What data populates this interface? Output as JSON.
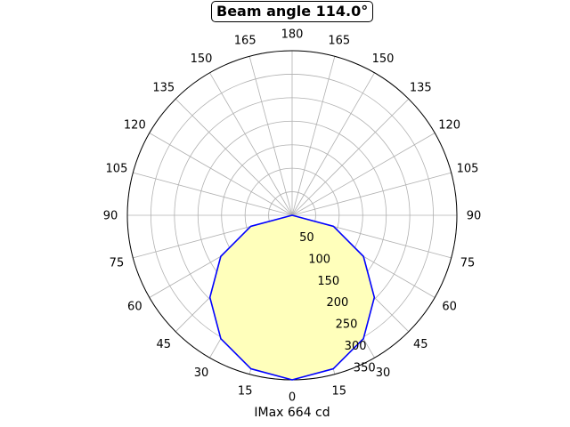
{
  "chart_data": {
    "type": "polar",
    "title": "Beam angle 114.0°",
    "xlabel": "IMax 664 cd",
    "angle_tick_labels": [
      "180",
      "165",
      "150",
      "135",
      "120",
      "105",
      "90",
      "75",
      "60",
      "45",
      "30",
      "15",
      "0",
      "15",
      "30",
      "45",
      "60",
      "75",
      "90",
      "105",
      "120",
      "135",
      "150",
      "165"
    ],
    "radial_tick_labels": [
      "50",
      "100",
      "150",
      "200",
      "250",
      "300",
      "350"
    ],
    "radial_ticks": [
      50,
      100,
      150,
      200,
      250,
      300,
      350
    ],
    "rmax": 350,
    "grid": true,
    "series": [
      {
        "color": "#0000ff",
        "fill": "#ffffbb",
        "angles_deg": [
          -180,
          -165,
          -150,
          -135,
          -120,
          -105,
          -90,
          -75,
          -60,
          -45,
          -30,
          -15,
          0,
          15,
          30,
          45,
          60,
          75,
          90,
          105,
          120,
          135,
          150,
          165,
          180
        ],
        "values": [
          0,
          0,
          0,
          0,
          0,
          0,
          0,
          91,
          175,
          247,
          303,
          338,
          350,
          338,
          303,
          247,
          175,
          91,
          0,
          0,
          0,
          0,
          0,
          0,
          0
        ]
      }
    ]
  }
}
